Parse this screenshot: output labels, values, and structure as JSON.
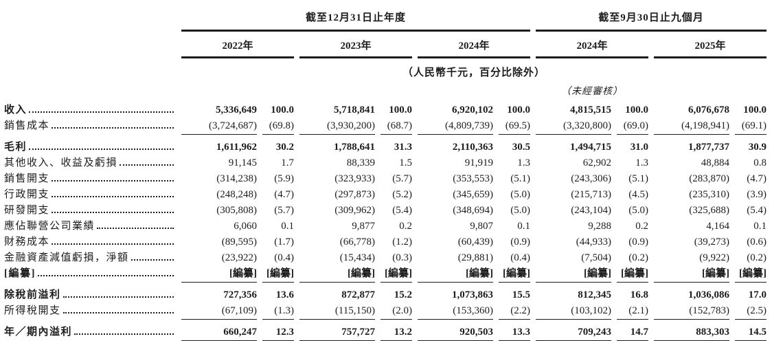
{
  "table": {
    "period_groups": [
      {
        "title": "截至12月31日止年度",
        "years": [
          "2022年",
          "2023年",
          "2024年"
        ]
      },
      {
        "title": "截至9月30日止九個月",
        "years": [
          "2024年",
          "2025年"
        ]
      }
    ],
    "unit_note": "（人民幣千元，百分比除外）",
    "unaudited_note": "（未經審核）",
    "unaudited_over_column": "2024年",
    "rows": [
      {
        "label": "收入",
        "bold": true,
        "cells": [
          "5,336,649",
          "100.0",
          "5,718,841",
          "100.0",
          "6,920,102",
          "100.0",
          "4,815,515",
          "100.0",
          "6,076,678",
          "100.0"
        ]
      },
      {
        "label": "銷售成本",
        "rule_below": "single",
        "cells": [
          "(3,724,687)",
          "(69.8)",
          "(3,930,200)",
          "(68.7)",
          "(4,809,739)",
          "(69.5)",
          "(3,320,800)",
          "(69.0)",
          "(4,198,941)",
          "(69.1)"
        ]
      },
      {
        "label": "毛利",
        "bold": true,
        "space_above": true,
        "cells": [
          "1,611,962",
          "30.2",
          "1,788,641",
          "31.3",
          "2,110,363",
          "30.5",
          "1,494,715",
          "31.0",
          "1,877,737",
          "30.9"
        ]
      },
      {
        "label": "其他收入、收益及虧損",
        "cells": [
          "91,145",
          "1.7",
          "88,339",
          "1.5",
          "91,919",
          "1.3",
          "62,902",
          "1.3",
          "48,884",
          "0.8"
        ]
      },
      {
        "label": "銷售開支",
        "cells": [
          "(314,238)",
          "(5.9)",
          "(323,933)",
          "(5.7)",
          "(353,553)",
          "(5.1)",
          "(243,306)",
          "(5.1)",
          "(283,870)",
          "(4.7)"
        ]
      },
      {
        "label": "行政開支",
        "cells": [
          "(248,248)",
          "(4.7)",
          "(297,873)",
          "(5.2)",
          "(345,659)",
          "(5.0)",
          "(215,713)",
          "(4.5)",
          "(235,310)",
          "(3.9)"
        ]
      },
      {
        "label": "研發開支",
        "cells": [
          "(305,808)",
          "(5.7)",
          "(309,962)",
          "(5.4)",
          "(348,694)",
          "(5.0)",
          "(243,104)",
          "(5.0)",
          "(325,688)",
          "(5.4)"
        ]
      },
      {
        "label": "應佔聯營公司業績",
        "cells": [
          "6,060",
          "0.1",
          "9,877",
          "0.2",
          "9,807",
          "0.1",
          "9,288",
          "0.2",
          "4,164",
          "0.1"
        ]
      },
      {
        "label": "財務成本",
        "cells": [
          "(89,595)",
          "(1.7)",
          "(66,778)",
          "(1.2)",
          "(60,439)",
          "(0.9)",
          "(44,933)",
          "(0.9)",
          "(39,273)",
          "(0.6)"
        ]
      },
      {
        "label": "金融資產減值虧損，淨額",
        "cells": [
          "(23,922)",
          "(0.4)",
          "(15,434)",
          "(0.3)",
          "(29,881)",
          "(0.4)",
          "(7,504)",
          "(0.2)",
          "(9,922)",
          "(0.2)"
        ]
      },
      {
        "label": "[編纂]",
        "bold": true,
        "rule_below": "single",
        "cells": [
          "[編纂]",
          "[編纂]",
          "[編纂]",
          "[編纂]",
          "[編纂]",
          "[編纂]",
          "[編纂]",
          "[編纂]",
          "[編纂]",
          "[編纂]"
        ]
      },
      {
        "label": "除稅前溢利",
        "bold": true,
        "space_above": true,
        "cells": [
          "727,356",
          "13.6",
          "872,877",
          "15.2",
          "1,073,863",
          "15.5",
          "812,345",
          "16.8",
          "1,036,086",
          "17.0"
        ]
      },
      {
        "label": "所得稅開支",
        "rule_below": "single",
        "cells": [
          "(67,109)",
          "(1.3)",
          "(115,150)",
          "(2.0)",
          "(153,360)",
          "(2.2)",
          "(103,102)",
          "(2.1)",
          "(152,783)",
          "(2.5)"
        ]
      },
      {
        "label": "年／期內溢利",
        "bold": true,
        "space_above": true,
        "rule_below": "double",
        "cells": [
          "660,247",
          "12.3",
          "757,727",
          "13.2",
          "920,503",
          "13.3",
          "709,243",
          "14.7",
          "883,303",
          "14.5"
        ]
      }
    ]
  }
}
